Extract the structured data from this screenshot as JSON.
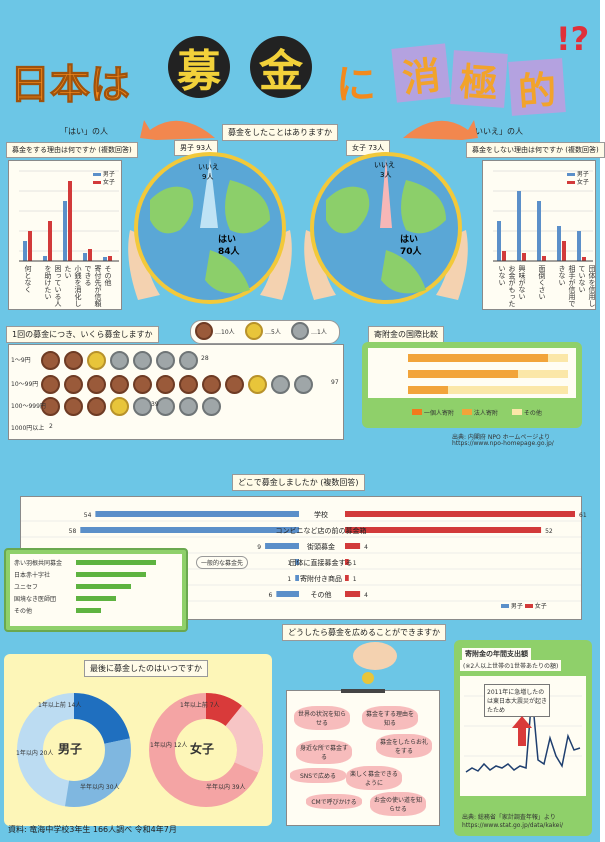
{
  "title": {
    "part1": "日本は",
    "bo": "募",
    "kin": "金",
    "ni": "に",
    "sho": "消",
    "kyoku": "極",
    "teki": "的",
    "mark": "!?"
  },
  "question": "募金をしたことはありますか",
  "left_yes_label": "「はい」の人",
  "right_no_label": "「いいえ」の人",
  "boys": {
    "label": "男子 93人",
    "no_a": "いいえ",
    "no_b": "9人",
    "yes_a": "はい",
    "yes_b": "84人"
  },
  "girls": {
    "label": "女子 73人",
    "no_a": "いいえ",
    "no_b": "3人",
    "yes_a": "はい",
    "yes_b": "70人"
  },
  "reason_left_title": "募金をする理由は何ですか (複数回答)",
  "reason_right_title": "募金をしない理由は何ですか (複数回答)",
  "legend_boy": "男子",
  "legend_girl": "女子",
  "reasons_left": [
    "何となく",
    "困っている人を助けたい",
    "小銭を消化したい",
    "寄付先が信頼できる",
    "その他"
  ],
  "reasons_right": [
    "お金がもったいない",
    "興味がない",
    "面倒くさい",
    "相手が信用できない",
    "団体を信用していない"
  ],
  "amount_title": "1回の募金につき、いくら募金しますか",
  "coin_legend": {
    "ten": "…10人",
    "five": "…5人",
    "one": "…1人"
  },
  "amount_rows": [
    {
      "label": "1〜9円",
      "count": "28"
    },
    {
      "label": "10〜99円",
      "count": "97"
    },
    {
      "label": "100〜999円",
      "count": "39"
    },
    {
      "label": "1000円以上",
      "count": "2"
    }
  ],
  "intl": {
    "title": "寄附金の国際比較",
    "legend": [
      "一個人寄附",
      "法人寄附",
      "その他"
    ],
    "source": "出典: 内閣府 NPO ホームページより",
    "url": "https://www.npo-homepage.go.jp/"
  },
  "where_title": "どこで募金しましたか (複数回答)",
  "where_rows": [
    {
      "label": "学校",
      "boy": "54",
      "girl": "61"
    },
    {
      "label": "コンビニなど店の前の募金箱",
      "boy": "58",
      "girl": "52"
    },
    {
      "label": "街頭募金",
      "boy": "9",
      "girl": "4"
    },
    {
      "label": "団体に直接募金する",
      "boy": "1",
      "girl": "1"
    },
    {
      "label": "寄附付き商品",
      "boy": "1",
      "girl": "1"
    },
    {
      "label": "その他",
      "boy": "6",
      "girl": "4"
    }
  ],
  "green_box_note": "一般的な募金先",
  "green_items": [
    "赤い羽根共同募金",
    "日本赤十字社",
    "ユニセフ",
    "国境なき医師団",
    "その他"
  ],
  "spread_title": "どうしたら募金を広めることができますか",
  "last_title": "最後に募金したのはいつですか",
  "boys_donut": {
    "center": "男子",
    "labels": [
      "1年以上前 14人",
      "1年以内 20人",
      "半年以内 30人"
    ]
  },
  "girls_donut": {
    "center": "女子",
    "labels": [
      "1年以上前 7人",
      "1年以内 12人",
      "半年以内 39人"
    ]
  },
  "hearts": [
    "世界の状況を知らせる",
    "募金をする理由を知る",
    "募金をしたらお礼をする",
    "身近な所で募金する",
    "SNSで広める",
    "楽しく募金できるように",
    "CMで呼びかける",
    "お金の使い道を知らせる"
  ],
  "annual_title": "寄附金の年間支出額",
  "annual_sub": "(※2人以上世帯の1世帯あたりの額)",
  "annual_note": "2011年に急増したのは東日本大震災が起きたため",
  "annual_source": "出典: 総務省「家計調査年報」より",
  "annual_url": "https://www.stat.go.jp/data/kakei/",
  "footer": "資料: 竜海中学校3年生 166人調べ 令和4年7月"
}
